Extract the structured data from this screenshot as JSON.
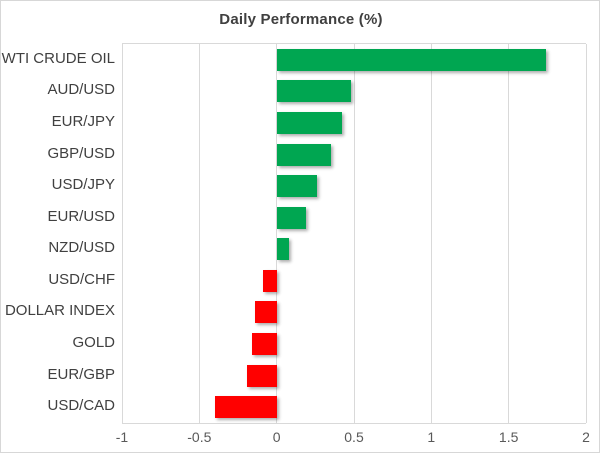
{
  "chart": {
    "title": "Daily Performance (%)",
    "colors": {
      "positive": "#00A651",
      "negative": "#FF0000",
      "gridline": "#D9D9D9",
      "border": "#D7D7D7",
      "title_text": "#404040",
      "category_text": "#404040",
      "tick_text": "#595959"
    }
  },
  "chart_data": {
    "type": "bar",
    "orientation": "horizontal",
    "title": "Daily Performance (%)",
    "categories": [
      "WTI CRUDE OIL",
      "AUD/USD",
      "EUR/JPY",
      "GBP/USD",
      "USD/JPY",
      "EUR/USD",
      "NZD/USD",
      "USD/CHF",
      "DOLLAR INDEX",
      "GOLD",
      "EUR/GBP",
      "USD/CAD"
    ],
    "values": [
      1.74,
      0.48,
      0.42,
      0.35,
      0.26,
      0.19,
      0.08,
      -0.09,
      -0.14,
      -0.16,
      -0.19,
      -0.4
    ],
    "xlabel": "",
    "ylabel": "",
    "xlim": [
      -1,
      2
    ],
    "xticks": [
      -1,
      -0.5,
      0,
      0.5,
      1,
      1.5,
      2
    ],
    "xtick_labels": [
      "-1",
      "-0.5",
      "0",
      "0.5",
      "1",
      "1.5",
      "2"
    ],
    "grid": "vertical-major",
    "legend": "none"
  }
}
